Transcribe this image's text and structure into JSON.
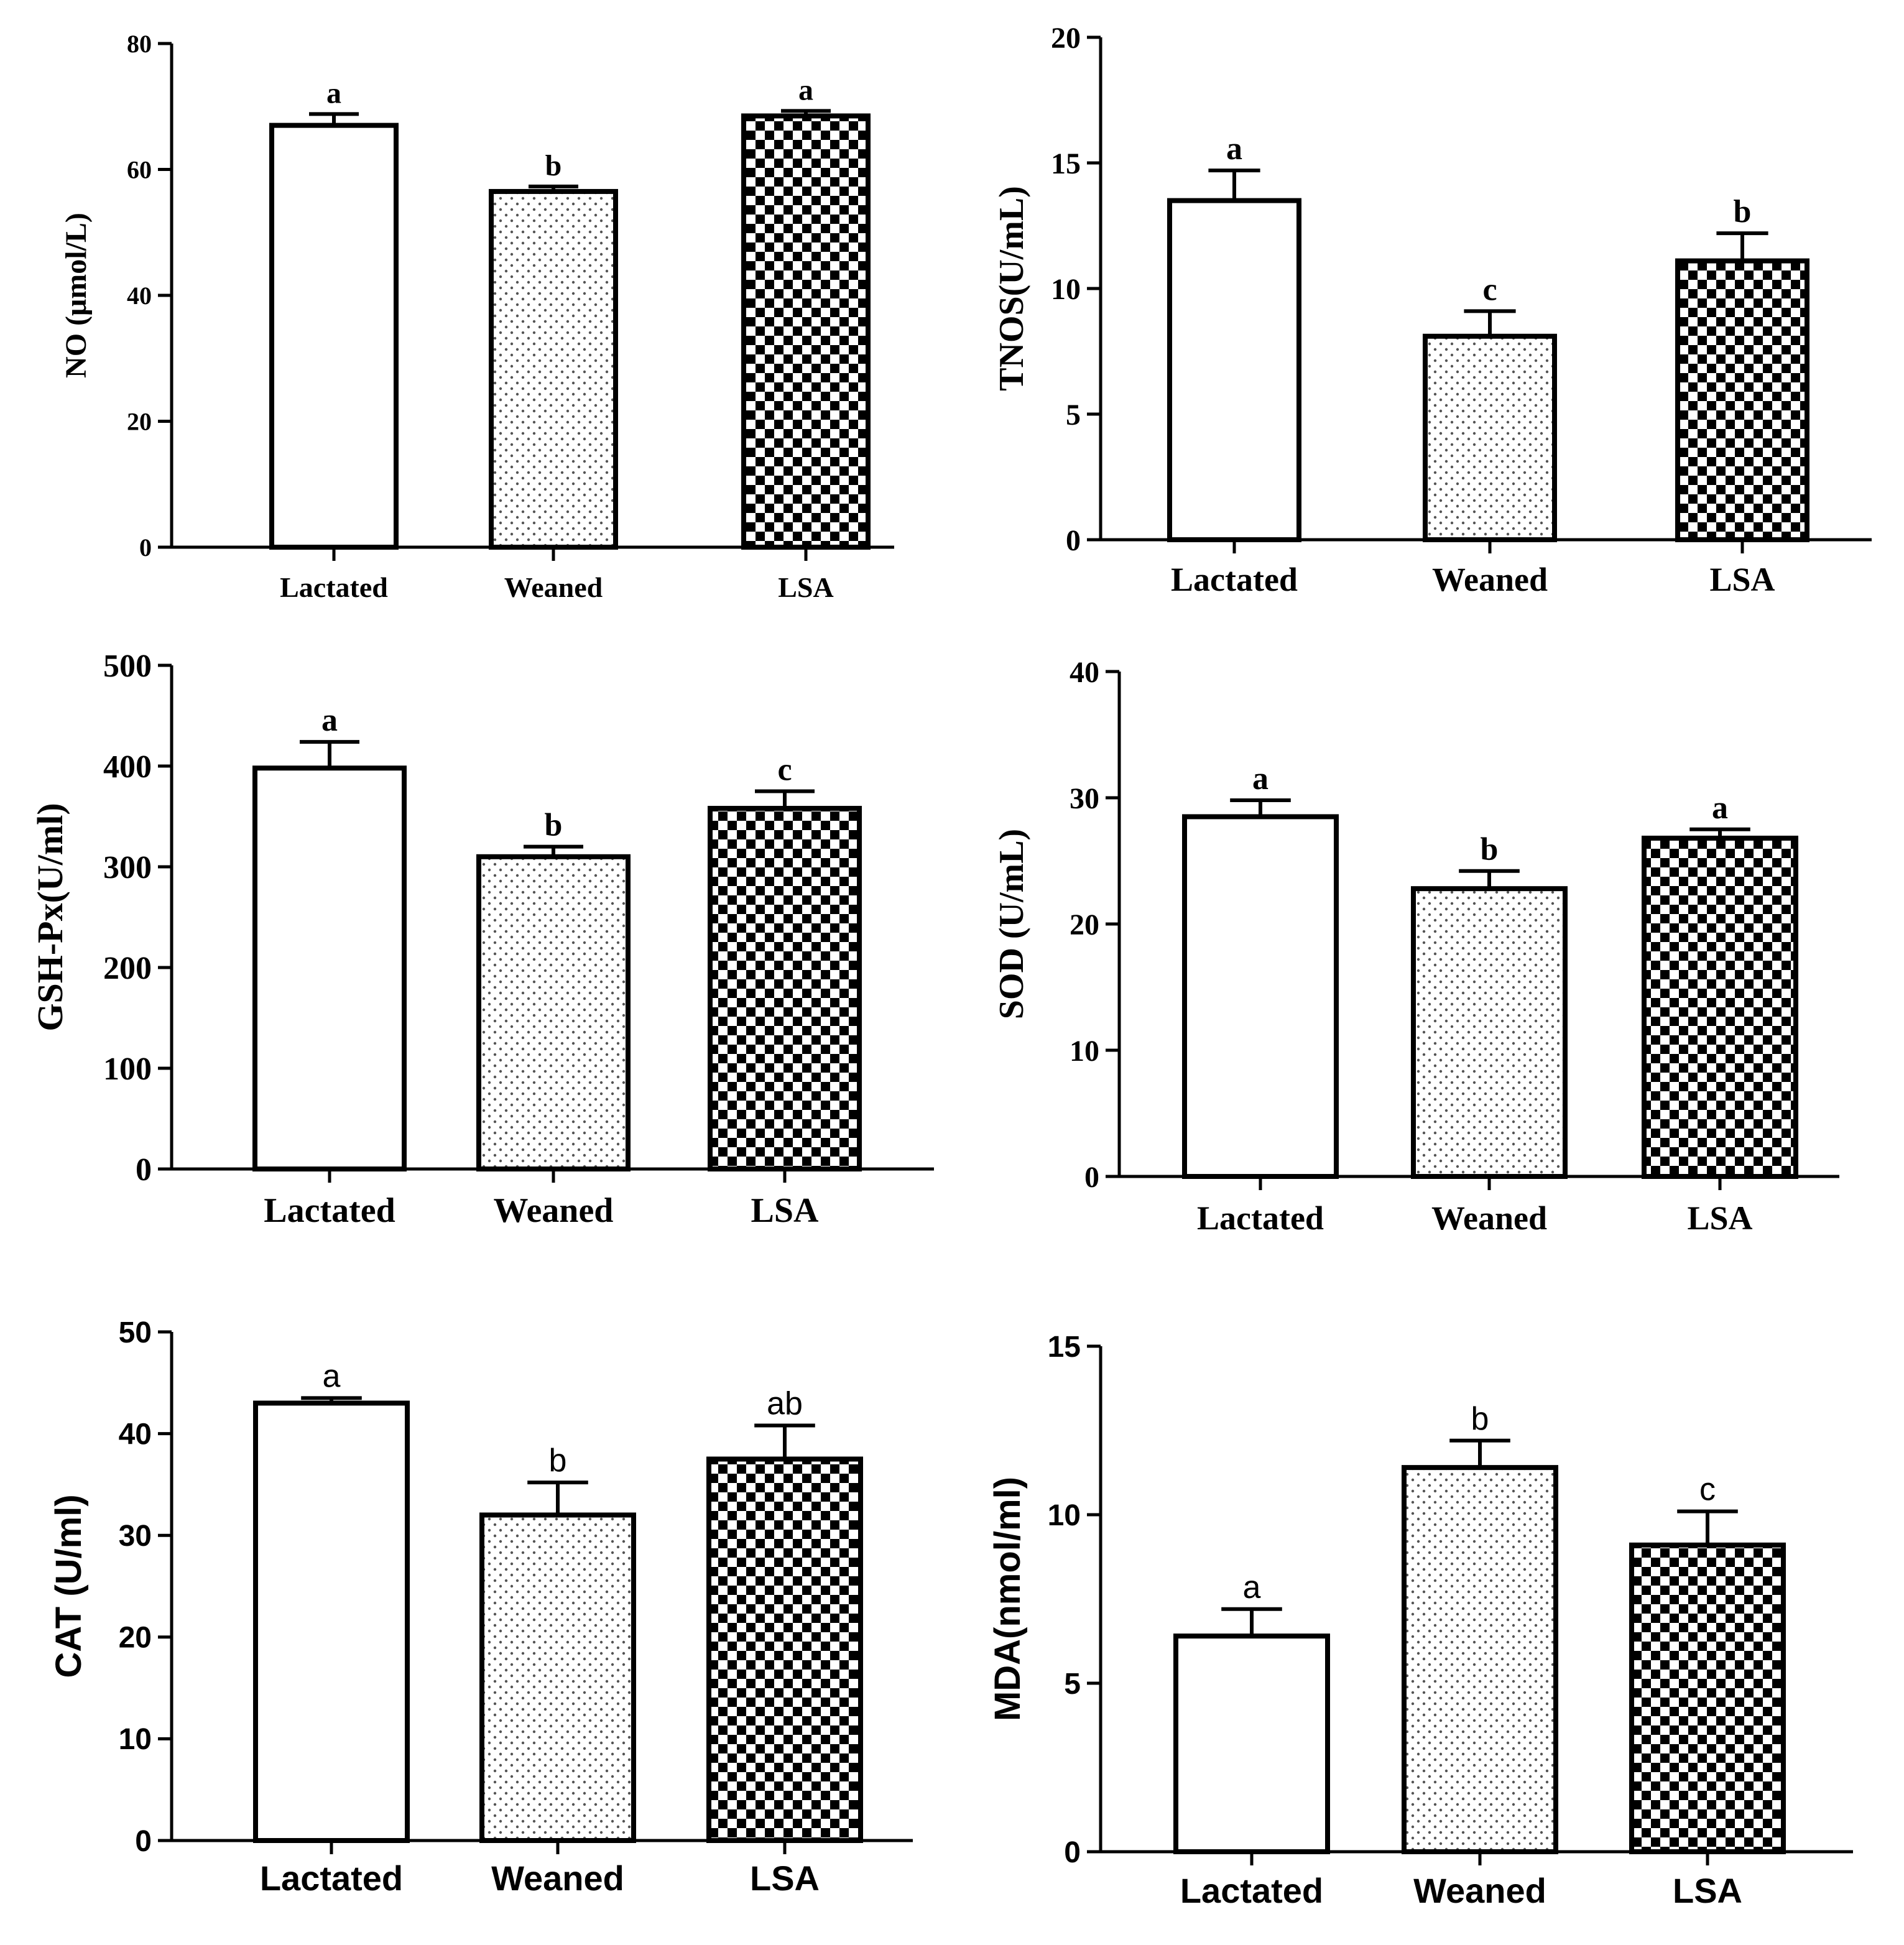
{
  "pattern_names": [
    "open-fill",
    "dot-fill",
    "checker-fill"
  ],
  "chart_data": [
    {
      "type": "bar",
      "categories": [
        "Lactated",
        "Weaned",
        "LSA"
      ],
      "values": [
        67,
        56.5,
        68.5
      ],
      "errors": [
        1.8,
        0.8,
        0.8
      ],
      "significance": [
        "a",
        "b",
        "a"
      ],
      "ylabel": "NO (μmol/L)",
      "ylim": [
        0,
        80
      ],
      "yticks": [
        0,
        20,
        40,
        60,
        80
      ],
      "style": "serif"
    },
    {
      "type": "bar",
      "categories": [
        "Lactated",
        "Weaned",
        "LSA"
      ],
      "values": [
        13.5,
        8.1,
        11.1
      ],
      "errors": [
        1.2,
        1.0,
        1.1
      ],
      "significance": [
        "a",
        "c",
        "b"
      ],
      "ylabel": "TNOS(U/mL)",
      "ylim": [
        0,
        20
      ],
      "yticks": [
        0,
        5,
        10,
        15,
        20
      ],
      "style": "serif"
    },
    {
      "type": "bar",
      "categories": [
        "Lactated",
        "Weaned",
        "LSA"
      ],
      "values": [
        398,
        310,
        358
      ],
      "errors": [
        26,
        10,
        17
      ],
      "significance": [
        "a",
        "b",
        "c"
      ],
      "ylabel": "GSH-Px(U/ml)",
      "ylim": [
        0,
        500
      ],
      "yticks": [
        0,
        100,
        200,
        300,
        400,
        500
      ],
      "style": "serif"
    },
    {
      "type": "bar",
      "categories": [
        "Lactated",
        "Weaned",
        "LSA"
      ],
      "values": [
        28.5,
        22.8,
        26.8
      ],
      "errors": [
        1.3,
        1.4,
        0.7
      ],
      "significance": [
        "a",
        "b",
        "a"
      ],
      "ylabel": "SOD (U/mL)",
      "ylim": [
        0,
        40
      ],
      "yticks": [
        0,
        10,
        20,
        30,
        40
      ],
      "style": "serif"
    },
    {
      "type": "bar",
      "categories": [
        "Lactated",
        "Weaned",
        "LSA"
      ],
      "values": [
        43,
        32,
        37.5
      ],
      "errors": [
        0.5,
        3.2,
        3.3
      ],
      "significance": [
        "a",
        "b",
        "ab"
      ],
      "ylabel": "CAT (U/ml)",
      "ylim": [
        0,
        50
      ],
      "yticks": [
        0,
        10,
        20,
        30,
        40,
        50
      ],
      "style": "sans"
    },
    {
      "type": "bar",
      "categories": [
        "Lactated",
        "Weaned",
        "LSA"
      ],
      "values": [
        6.4,
        11.4,
        9.1
      ],
      "errors": [
        0.8,
        0.8,
        1.0
      ],
      "significance": [
        "a",
        "b",
        "c"
      ],
      "ylabel": "MDA(nmol/ml)",
      "ylim": [
        0,
        15
      ],
      "yticks": [
        0,
        5,
        10,
        15
      ],
      "style": "sans"
    }
  ]
}
